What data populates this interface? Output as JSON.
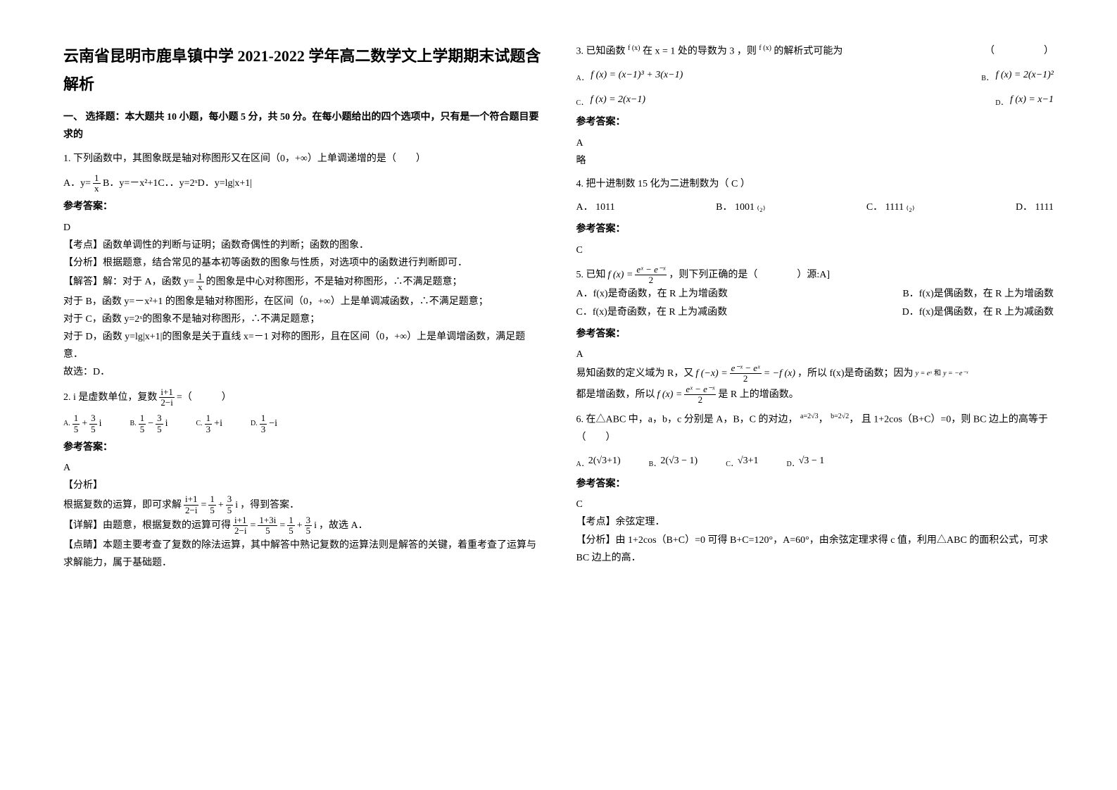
{
  "title": "云南省昆明市鹿阜镇中学 2021-2022 学年高二数学文上学期期末试题含解析",
  "section1_head": "一、 选择题：本大题共 10 小题，每小题 5 分，共 50 分。在每小题给出的四个选项中，只有是一个符合题目要求的",
  "q1": {
    "stem": "1. 下列函数中，其图象既是轴对称图形又在区间（0，+∞）上单调递增的是（　　）",
    "optA_pre": "A．y=",
    "optA_num": "1",
    "optA_den": "x",
    "optRest": "B．y=－x²+1C．．y=2ˣD．y=lg|x+1|",
    "ans_label": "参考答案：",
    "ans": "D",
    "exp1": "【考点】函数单调性的判断与证明；函数奇偶性的判断；函数的图象．",
    "exp2": "【分析】根据题意，结合常见的基本初等函数的图象与性质，对选项中的函数进行判断即可．",
    "exp3a": "【解答】解：对于 A，函数 y=",
    "exp3_num": "1",
    "exp3_den": "x",
    "exp3b": "的图象是中心对称图形，不是轴对称图形，∴不满足题意；",
    "exp4": "对于 B，函数 y=－x²+1 的图象是轴对称图形，在区间（0，+∞）上是单调减函数，∴不满足题意；",
    "exp5": "对于 C，函数 y=2ˣ的图象不是轴对称图形，∴不满足题意；",
    "exp6": "对于 D，函数 y=lg|x+1|的图象是关于直线 x=－1 对称的图形，且在区间（0，+∞）上是单调增函数，满足题意．",
    "exp7": "故选：D．"
  },
  "q2": {
    "stem_a": "2. i 是虚数单位，复数",
    "frac_num": "i+1",
    "frac_den": "2−i",
    "stem_b": "=（　　　）",
    "ans_label": "参考答案：",
    "ans": "A",
    "fenxi": "【分析】",
    "step_a": "根据复数的运算，即可求解",
    "step_b": "，得到答案．",
    "detail_a": "【详解】由题意，根据复数的运算可得",
    "detail_b": "，故选 A．",
    "dianjing": "【点睛】本题主要考查了复数的除法运算，其中解答中熟记复数的运算法则是解答的关键，着重考查了运算与求解能力，属于基础题．",
    "optA_lab": "A.",
    "optB_lab": "B.",
    "optC_lab": "C.",
    "optD_lab": "D.",
    "a_n1": "1",
    "a_d1": "5",
    "a_n2": "3",
    "a_d2": "5",
    "b_n1": "1",
    "b_d1": "5",
    "b_n2": "3",
    "b_d2": "5",
    "c_n": "1",
    "c_d": "3",
    "d_n": "1",
    "d_d": "3",
    "plus": "+",
    "minus": "−",
    "eq": "=",
    "i": "i",
    "plus_i": "+i",
    "minus_i": "−i",
    "mid_num": "1+3i",
    "mid_den": "5"
  },
  "q3": {
    "stem_a": "3. 已知函数",
    "fx": "f (x)",
    "stem_b": "在 x = 1 处的导数为 3 ，则",
    "stem_c": "的解析式可能为",
    "paren": "（　　　　　）",
    "optA_lab": "A．",
    "optA": "f (x) = (x−1)³ + 3(x−1)",
    "optB_lab": "B．",
    "optB": "f (x) = 2(x−1)²",
    "optC_lab": "C．",
    "optC": "f (x) = 2(x−1)",
    "optD_lab": "D．",
    "optD": "f (x) = x−1",
    "ans_label": "参考答案：",
    "ans": "A",
    "lue": "略"
  },
  "q4": {
    "stem": "4. 把十进制数 15 化为二进制数为（ C ）",
    "optA": "A． 1011",
    "optB": "B． 1001 ₍₂₎",
    "optC": "C． 1111 ₍₂₎",
    "optD": "D． 1111",
    "ans_label": "参考答案：",
    "ans": "C"
  },
  "q5": {
    "stem_a": "5. 已知",
    "fx_lhs": "f (x) =",
    "num": "eˣ − e⁻ˣ",
    "den": "2",
    "stem_b": " ，则下列正确的是（　　　　）源:A]",
    "optA": "A．f(x)是奇函数，在 R 上为增函数",
    "optB": "B．f(x)是偶函数，在 R 上为增函数",
    "optC": "C．f(x)是奇函数，在 R 上为减函数",
    "optD": "D．f(x)是偶函数，在 R 上为减函数",
    "ans_label": "参考答案：",
    "ans": "A",
    "exp_a": "易知函数的定义域为 R，又",
    "exp_fneg_lhs": "f (−x) =",
    "exp_fneg_num": "e⁻ˣ − eˣ",
    "exp_fneg_den": "2",
    "exp_fneg_rhs": "= −f (x)",
    "exp_b": " ，所以 f(x)是奇函数；因为",
    "yex": "y = eˣ",
    "he": "和",
    "ynex": "y = −e⁻ˣ",
    "exp_c": "都是增函数，所以",
    "exp_d": " 是 R 上的增函数。"
  },
  "q6": {
    "stem_a": "6. 在△ABC 中，a，b，c 分别是 A，B，C 的对边，",
    "a_eq": "a=2√3",
    "comma": "，",
    "b_eq": "b=2√2",
    "comma2": "，",
    "stem_b": "且 1+2cos（B+C）=0，则 BC 边上的高等于（　　）",
    "optA_lab": "A．",
    "optA": "2(√3+1)",
    "optB_lab": "B．",
    "optB": "2(√3 − 1)",
    "optC_lab": "C．",
    "optC": "√3+1",
    "optD_lab": "D．",
    "optD": "√3 − 1",
    "ans_label": "参考答案：",
    "ans": "C",
    "kd": "【考点】余弦定理．",
    "fx": "【分析】由 1+2cos（B+C）=0 可得 B+C=120°，A=60°，由余弦定理求得 c 值，利用△ABC 的面积公式，可求 BC 边上的高．"
  }
}
